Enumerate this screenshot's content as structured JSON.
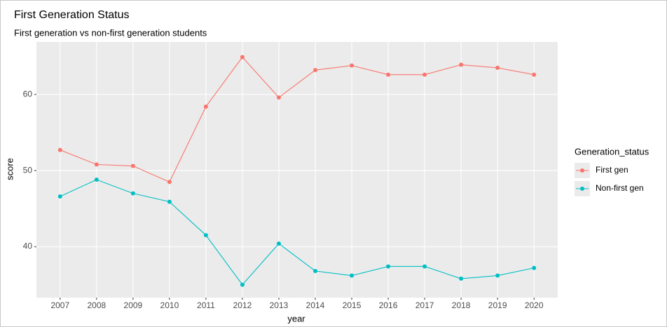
{
  "chart_data": {
    "type": "line",
    "title": "First Generation Status",
    "subtitle": "First generation vs non-first generation students",
    "xlabel": "year",
    "ylabel": "score",
    "legend_title": "Generation_status",
    "legend": "right",
    "grid": true,
    "x": [
      2007,
      2008,
      2009,
      2010,
      2011,
      2012,
      2013,
      2014,
      2015,
      2016,
      2017,
      2018,
      2019,
      2020
    ],
    "series": [
      {
        "name": "First gen",
        "color": "#F8766D",
        "values": [
          52.7,
          50.8,
          50.6,
          48.5,
          58.4,
          64.9,
          59.6,
          63.2,
          63.8,
          62.6,
          62.6,
          63.9,
          63.5,
          62.6
        ]
      },
      {
        "name": "Non-first gen",
        "color": "#00BFC4",
        "values": [
          46.6,
          48.8,
          47.0,
          45.9,
          41.5,
          35.0,
          40.4,
          36.8,
          36.2,
          37.4,
          37.4,
          35.8,
          36.2,
          37.2
        ]
      }
    ],
    "xlim": [
      2006.35,
      2020.65
    ],
    "xticks": [
      2007,
      2008,
      2009,
      2010,
      2011,
      2012,
      2013,
      2014,
      2015,
      2016,
      2017,
      2018,
      2019,
      2020
    ],
    "ylim": [
      33.3,
      66.9
    ],
    "yticks": [
      40,
      50,
      60
    ]
  }
}
